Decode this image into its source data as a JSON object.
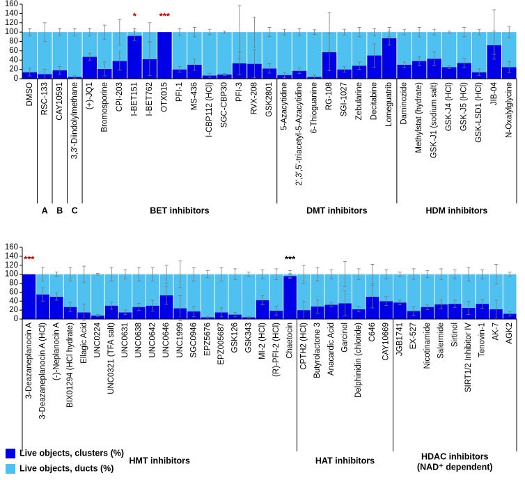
{
  "chart_data": [
    {
      "type": "stacked_bar",
      "categories": [
        "DMSO",
        "RSC-133",
        "CAY10591",
        "3,3'-Diindolylmethane",
        "(+)-JQ1",
        "Bromosporine",
        "CPI-203",
        "I-BET151",
        "I-BET762",
        "OTX015",
        "PFI-1",
        "MS-436",
        "I-CBP112 (HCl)",
        "SGC-CBP30",
        "PFI-3",
        "RVX-208",
        "GSK2801",
        "5-Azacytidine",
        "2',3',5'-triacetyl-5-Azacytidine",
        "6-Thioguanine",
        "RG-108",
        "SGI-1027",
        "Zebularine",
        "Decitabine",
        "Lomeguatrib",
        "Daminozide",
        "Methylstat (hydrate)",
        "GSK-J1 (sodium salt)",
        "GSK-J4 (HCl)",
        "GSK-J5 (HCl)",
        "GSK-LSD1 (HCl)",
        "JIB-04",
        "N-Oxalylglycine"
      ],
      "series": [
        {
          "color": "#0000e6",
          "values": [
            14,
            10,
            18,
            4,
            47,
            21,
            38,
            92,
            42,
            100,
            20,
            30,
            7,
            9,
            33,
            32,
            22,
            8,
            17,
            4,
            57,
            20,
            28,
            50,
            87,
            30,
            38,
            43,
            25,
            34,
            14,
            72,
            25
          ],
          "errors": [
            8,
            10,
            8,
            3,
            8,
            15,
            20,
            10,
            35,
            0,
            6,
            12,
            4,
            2,
            25,
            30,
            10,
            6,
            6,
            4,
            40,
            6,
            8,
            25,
            15,
            6,
            10,
            15,
            3,
            10,
            7,
            30,
            12
          ]
        },
        {
          "color": "#4fc1f0",
          "values": [
            86,
            90,
            82,
            96,
            53,
            79,
            62,
            8,
            58,
            0,
            80,
            70,
            93,
            91,
            67,
            68,
            78,
            92,
            83,
            96,
            43,
            80,
            72,
            50,
            13,
            70,
            62,
            57,
            75,
            66,
            86,
            28,
            75
          ],
          "errors": [
            8,
            20,
            8,
            8,
            8,
            15,
            28,
            8,
            20,
            0,
            8,
            10,
            6,
            2,
            57,
            32,
            10,
            6,
            8,
            5,
            42,
            6,
            10,
            8,
            10,
            6,
            10,
            6,
            2,
            10,
            6,
            48,
            12
          ]
        }
      ],
      "ylim": [
        0,
        160
      ],
      "yticks": [
        0,
        20,
        40,
        60,
        80,
        100,
        120,
        140,
        160
      ],
      "groups": [
        {
          "label": "A",
          "start": 1,
          "end": 1
        },
        {
          "label": "B",
          "start": 2,
          "end": 2
        },
        {
          "label": "C",
          "start": 3,
          "end": 3
        },
        {
          "label": "BET inhibitors",
          "start": 4,
          "end": 16
        },
        {
          "label": "DMT inhibitors",
          "start": 17,
          "end": 24
        },
        {
          "label": "HDM inhibitors",
          "start": 25,
          "end": 32
        }
      ],
      "annotations": [
        {
          "text": "*",
          "category": 7,
          "color": "#c00000"
        },
        {
          "text": "***",
          "category": 9,
          "color": "#c00000"
        }
      ]
    },
    {
      "type": "stacked_bar",
      "categories": [
        "3-Deazaneplanocin A",
        "3-Deazaneplanocin A (HCl)",
        "(-)-Neplanocin A",
        "BIX01294 (HCl hydrate)",
        "Ellagic Acid",
        "UNC0224",
        "UNC0321 (TFA salt)",
        "UNC0631",
        "UNC0638",
        "UNC0642",
        "UNC0646",
        "UNC1999",
        "SGC0946",
        "EPZ5676",
        "EPZ005687",
        "GSK126",
        "GSK343",
        "MI-2 (HCl)",
        "(R)-PFI-2 (HCl)",
        "Chaetocin",
        "CPTH2 (HCl)",
        "Butyrolactone 3",
        "Anacardic Acid",
        "Garcinol",
        "Delphinidin (chloride)",
        "C646",
        "CAY10669",
        "JGB1741",
        "EX-527",
        "Nicotinamide",
        "Salermide",
        "Sirtinol",
        "SIRT1/2 Inhibitor IV",
        "Tenovin-1",
        "AK-7",
        "AGK2"
      ],
      "series": [
        {
          "name": "Live objects, clusters (%)",
          "color": "#0000e6",
          "values": [
            100,
            55,
            50,
            27,
            15,
            8,
            30,
            15,
            27,
            30,
            53,
            24,
            17,
            4,
            15,
            10,
            4,
            42,
            19,
            96,
            20,
            28,
            32,
            35,
            22,
            50,
            40,
            37,
            18,
            27,
            33,
            34,
            25,
            34,
            22,
            12
          ],
          "errors": [
            0,
            15,
            8,
            10,
            18,
            2,
            8,
            5,
            8,
            12,
            20,
            28,
            12,
            2,
            10,
            5,
            2,
            10,
            10,
            5,
            20,
            15,
            5,
            28,
            6,
            25,
            10,
            5,
            10,
            6,
            10,
            8,
            15,
            10,
            20,
            5
          ]
        },
        {
          "name": "Live objects, ducts (%)",
          "color": "#4fc1f0",
          "values": [
            0,
            45,
            50,
            73,
            85,
            92,
            70,
            85,
            73,
            70,
            47,
            76,
            83,
            96,
            85,
            90,
            96,
            58,
            81,
            4,
            80,
            72,
            68,
            65,
            78,
            50,
            60,
            63,
            82,
            73,
            67,
            66,
            75,
            66,
            78,
            88
          ],
          "errors": [
            0,
            15,
            5,
            15,
            18,
            2,
            15,
            10,
            15,
            15,
            20,
            30,
            15,
            8,
            15,
            12,
            5,
            10,
            12,
            8,
            20,
            15,
            10,
            28,
            12,
            22,
            10,
            5,
            12,
            8,
            12,
            10,
            15,
            10,
            22,
            5
          ]
        }
      ],
      "ylim": [
        0,
        160
      ],
      "yticks": [
        0,
        20,
        40,
        60,
        80,
        100,
        120,
        140,
        160
      ],
      "groups": [
        {
          "label": "HMT inhibitors",
          "start": 0,
          "end": 19
        },
        {
          "label": "HAT inhibitors",
          "start": 20,
          "end": 26
        },
        {
          "label": "HDAC inhibitors",
          "sublabel": "(NAD⁺ dependent)",
          "start": 27,
          "end": 35
        }
      ],
      "annotations": [
        {
          "text": "***",
          "category": 0,
          "color": "#c00000"
        },
        {
          "text": "***",
          "category": 19,
          "color": "#000000"
        }
      ]
    }
  ]
}
